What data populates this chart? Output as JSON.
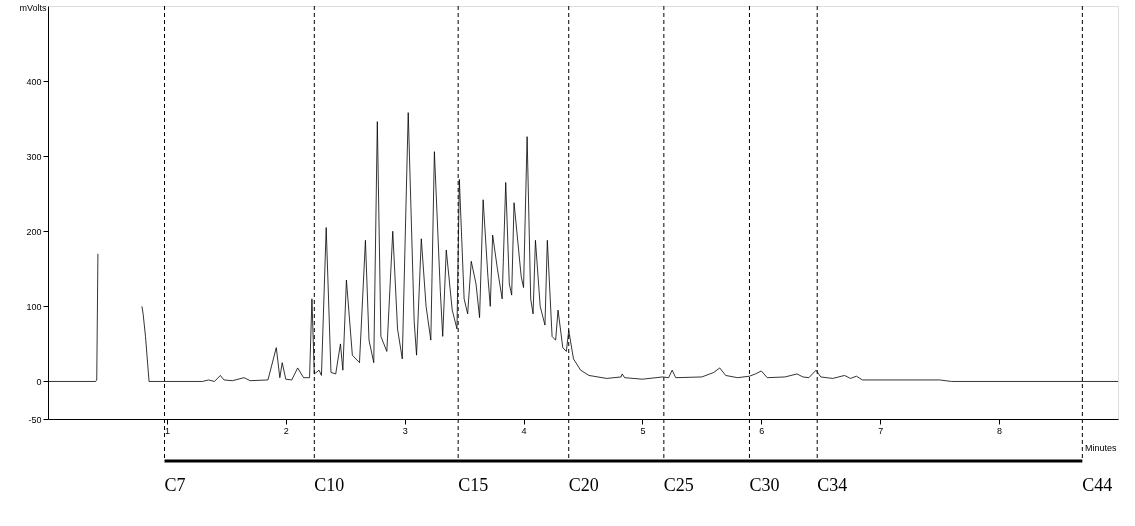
{
  "chart_data": {
    "type": "line",
    "xlabel": "Minutes",
    "ylabel": "mVolts",
    "xlim": [
      0,
      9.0
    ],
    "ylim": [
      -50,
      500
    ],
    "xticks": [
      1,
      2,
      3,
      4,
      5,
      6,
      7,
      8
    ],
    "yticks": [
      -50,
      0,
      100,
      200,
      300,
      400
    ],
    "series": [
      {
        "color": "#000000",
        "x": [
          0,
          0.4,
          0.41,
          0.42,
          0.43,
          0.78,
          0.79,
          0.8,
          0.82,
          0.85,
          1.0,
          1.3,
          1.35,
          1.4,
          1.45,
          1.48,
          1.55,
          1.65,
          1.7,
          1.85,
          1.92,
          1.95,
          1.97,
          2.0,
          2.05,
          2.1,
          2.15,
          2.2,
          2.22,
          2.24,
          2.28,
          2.3,
          2.34,
          2.38,
          2.42,
          2.46,
          2.48,
          2.51,
          2.56,
          2.62,
          2.67,
          2.7,
          2.74,
          2.77,
          2.8,
          2.85,
          2.9,
          2.94,
          2.98,
          3.03,
          3.08,
          3.1,
          3.14,
          3.18,
          3.22,
          3.25,
          3.3,
          3.32,
          3.35,
          3.4,
          3.44,
          3.46,
          3.5,
          3.53,
          3.56,
          3.6,
          3.63,
          3.66,
          3.7,
          3.72,
          3.74,
          3.78,
          3.82,
          3.85,
          3.88,
          3.9,
          3.92,
          3.98,
          4.0,
          4.03,
          4.06,
          4.08,
          4.1,
          4.14,
          4.18,
          4.2,
          4.24,
          4.27,
          4.29,
          4.33,
          4.36,
          4.38,
          4.42,
          4.48,
          4.55,
          4.7,
          4.82,
          4.83,
          4.85,
          5.0,
          5.17,
          5.22,
          5.25,
          5.28,
          5.5,
          5.6,
          5.65,
          5.7,
          5.8,
          5.9,
          5.95,
          6.0,
          6.05,
          6.2,
          6.3,
          6.35,
          6.4,
          6.46,
          6.5,
          6.6,
          6.7,
          6.75,
          6.8,
          6.85,
          7.5,
          7.6,
          9.0
        ],
        "values": [
          0,
          0,
          2,
          170,
          null,
          null,
          100,
          90,
          60,
          0,
          0,
          0,
          2,
          0,
          8,
          2,
          1,
          5,
          1,
          2,
          45,
          5,
          25,
          3,
          2,
          18,
          5,
          5,
          110,
          10,
          15,
          8,
          205,
          12,
          10,
          50,
          15,
          135,
          35,
          25,
          188,
          55,
          25,
          346,
          60,
          40,
          200,
          70,
          30,
          358,
          80,
          35,
          190,
          100,
          55,
          306,
          120,
          60,
          175,
          95,
          70,
          269,
          110,
          90,
          160,
          130,
          85,
          242,
          140,
          100,
          195,
          150,
          110,
          265,
          130,
          115,
          238,
          140,
          125,
          326,
          110,
          90,
          188,
          100,
          75,
          188,
          60,
          55,
          95,
          45,
          40,
          68,
          30,
          15,
          8,
          4,
          6,
          10,
          5,
          3,
          6,
          5,
          15,
          5,
          6,
          12,
          18,
          8,
          5,
          7,
          10,
          14,
          5,
          6,
          10,
          6,
          5,
          15,
          6,
          4,
          8,
          4,
          7,
          2,
          2,
          0,
          0
        ]
      }
    ],
    "ref_lines": [
      {
        "axis": "x",
        "value": 0.98,
        "label": "C7",
        "line_style": "dashed",
        "color": "#000000"
      },
      {
        "axis": "x",
        "value": 2.24,
        "label": "C10",
        "line_style": "dashed",
        "color": "#000000"
      },
      {
        "axis": "x",
        "value": 3.45,
        "label": "C15",
        "line_style": "dashed",
        "color": "#000000"
      },
      {
        "axis": "x",
        "value": 4.38,
        "label": "C20",
        "line_style": "dashed",
        "color": "#000000"
      },
      {
        "axis": "x",
        "value": 5.18,
        "label": "C25",
        "line_style": "dashed",
        "color": "#000000"
      },
      {
        "axis": "x",
        "value": 5.9,
        "label": "C30",
        "line_style": "dashed",
        "color": "#000000"
      },
      {
        "axis": "x",
        "value": 6.47,
        "label": "C34",
        "line_style": "dashed",
        "color": "#000000"
      },
      {
        "axis": "x",
        "value": 8.7,
        "label": "C44",
        "line_style": "dashed",
        "color": "#000000"
      }
    ]
  }
}
